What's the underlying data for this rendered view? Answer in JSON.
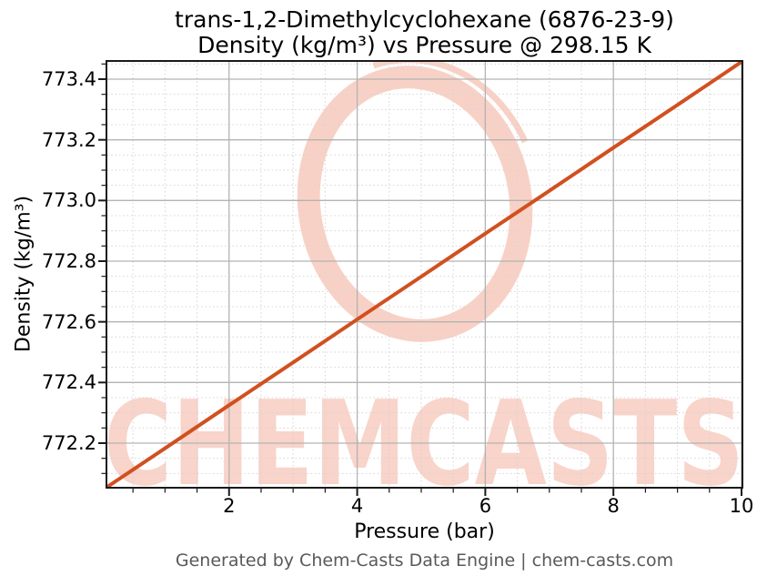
{
  "page": {
    "background": "#ffffff"
  },
  "title": {
    "line1": "trans-1,2-Dimethylcyclohexane (6876-23-9)",
    "line2": "Density (kg/m³) vs Pressure @ 298.15 K"
  },
  "footer": {
    "text": "Generated by Chem-Casts Data Engine | chem-casts.com",
    "color": "#595959"
  },
  "watermark": {
    "text": "CHEMCASTS",
    "text_color": "#f8d4ca",
    "ring_color": "#f8d1c6"
  },
  "chart_data": {
    "type": "line",
    "title": "trans-1,2-Dimethylcyclohexane (6876-23-9) — Density (kg/m³) vs Pressure @ 298.15 K",
    "xlabel": "Pressure (bar)",
    "ylabel": "Density (kg/m³)",
    "xlim": [
      0.1,
      10.0
    ],
    "ylim": [
      772.056,
      773.457
    ],
    "grid": {
      "major": true,
      "minor": true,
      "major_color": "#b3b3b3",
      "minor_color": "#d4d4d4"
    },
    "x_ticks": {
      "values": [
        2,
        4,
        6,
        8,
        10
      ],
      "labels": [
        "2",
        "4",
        "6",
        "8",
        "10"
      ],
      "minor_step": 0.5
    },
    "y_ticks": {
      "values": [
        772.2,
        772.4,
        772.6,
        772.8,
        773.0,
        773.2,
        773.4
      ],
      "labels": [
        "772.2",
        "772.4",
        "772.6",
        "772.8",
        "773.0",
        "773.2",
        "773.4"
      ],
      "minor_step": 0.05
    },
    "legend": {
      "visible": false
    },
    "series": [
      {
        "name": "Density",
        "color": "#d1501f",
        "line_width": 4,
        "x": [
          0.1,
          1,
          2,
          3,
          4,
          5,
          6,
          7,
          8,
          9,
          10
        ],
        "y": [
          772.056,
          772.183,
          772.325,
          772.466,
          772.608,
          772.749,
          772.891,
          773.032,
          773.174,
          773.315,
          773.457
        ]
      }
    ]
  }
}
